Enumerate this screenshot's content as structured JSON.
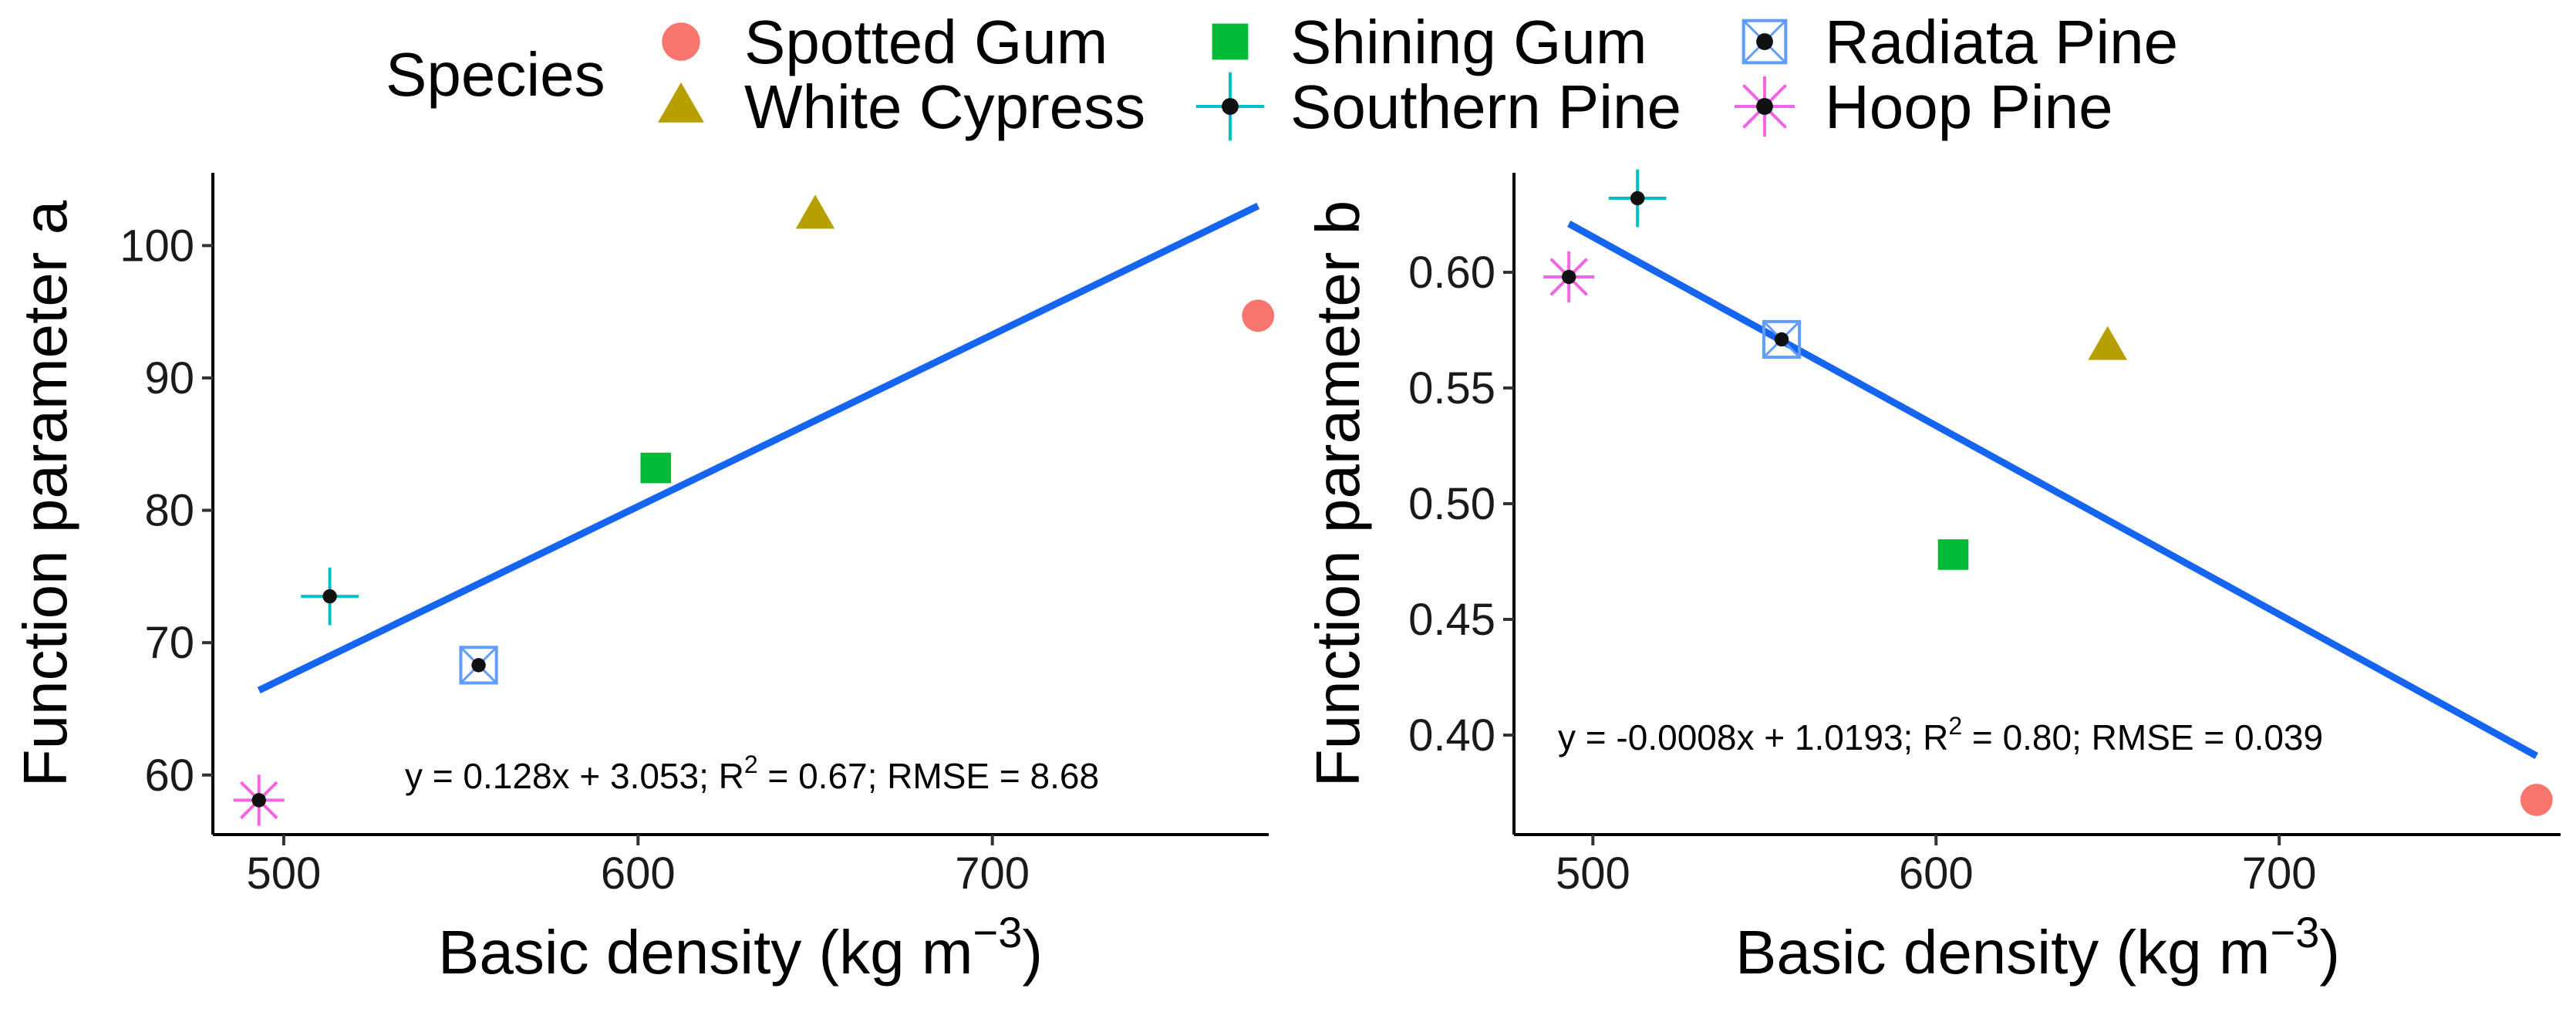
{
  "legend": {
    "title": "Species",
    "entries": [
      {
        "label": "Spotted Gum",
        "marker": "circle-icon",
        "color": "#F8766D"
      },
      {
        "label": "White Cypress",
        "marker": "triangle-icon",
        "color": "#B79F00"
      },
      {
        "label": "Shining Gum",
        "marker": "square-icon",
        "color": "#00BA38"
      },
      {
        "label": "Southern Pine",
        "marker": "crosshair-dot-icon",
        "color": "#00BFC4"
      },
      {
        "label": "Radiata Pine",
        "marker": "boxed-x-icon",
        "color": "#619CFF"
      },
      {
        "label": "Hoop Pine",
        "marker": "asterisk-star-icon",
        "color": "#F564E3"
      }
    ]
  },
  "line_color": "#1565F0",
  "chart_data": [
    {
      "type": "scatter",
      "panel": "left",
      "xlabel": "Basic density (kg m",
      "xlabel_sup": "−3",
      "xlabel_end": ")",
      "ylabel": "Function parameter a",
      "xlim": [
        480,
        778
      ],
      "ylim": [
        55.5,
        105.5
      ],
      "xticks": [
        500,
        600,
        700
      ],
      "yticks": [
        60,
        70,
        80,
        90,
        100
      ],
      "points": [
        {
          "species": "Spotted Gum",
          "x": 775,
          "y": 94.7
        },
        {
          "species": "White Cypress",
          "x": 650,
          "y": 102.3
        },
        {
          "species": "Shining Gum",
          "x": 605,
          "y": 83.2
        },
        {
          "species": "Southern Pine",
          "x": 513,
          "y": 73.5
        },
        {
          "species": "Radiata Pine",
          "x": 555,
          "y": 68.3
        },
        {
          "species": "Hoop Pine",
          "x": 493,
          "y": 58.1
        }
      ],
      "fit": {
        "x": [
          493,
          775
        ],
        "y": [
          66.4,
          103.0
        ]
      },
      "annotation": {
        "pre": "y = 0.128x + 3.053; R",
        "sup": "2",
        "post": " = 0.67; RMSE = 8.68"
      }
    },
    {
      "type": "scatter",
      "panel": "right",
      "xlabel": "Basic density (kg m",
      "xlabel_sup": "−3",
      "xlabel_end": ")",
      "ylabel": "Function parameter b",
      "xlim": [
        477,
        782
      ],
      "ylim": [
        0.357,
        0.643
      ],
      "xticks": [
        500,
        600,
        700
      ],
      "yticks": [
        "0.40",
        "0.45",
        "0.50",
        "0.55",
        "0.60"
      ],
      "points": [
        {
          "species": "Spotted Gum",
          "x": 775,
          "y": 0.372
        },
        {
          "species": "White Cypress",
          "x": 650,
          "y": 0.568
        },
        {
          "species": "Shining Gum",
          "x": 605,
          "y": 0.478
        },
        {
          "species": "Southern Pine",
          "x": 513,
          "y": 0.632
        },
        {
          "species": "Radiata Pine",
          "x": 555,
          "y": 0.571
        },
        {
          "species": "Hoop Pine",
          "x": 493,
          "y": 0.598
        }
      ],
      "fit": {
        "x": [
          493,
          775
        ],
        "y": [
          0.621,
          0.391
        ]
      },
      "annotation": {
        "pre": "y = -0.0008x + 1.0193; R",
        "sup": "2",
        "post": " = 0.80; RMSE = 0.039"
      }
    }
  ]
}
